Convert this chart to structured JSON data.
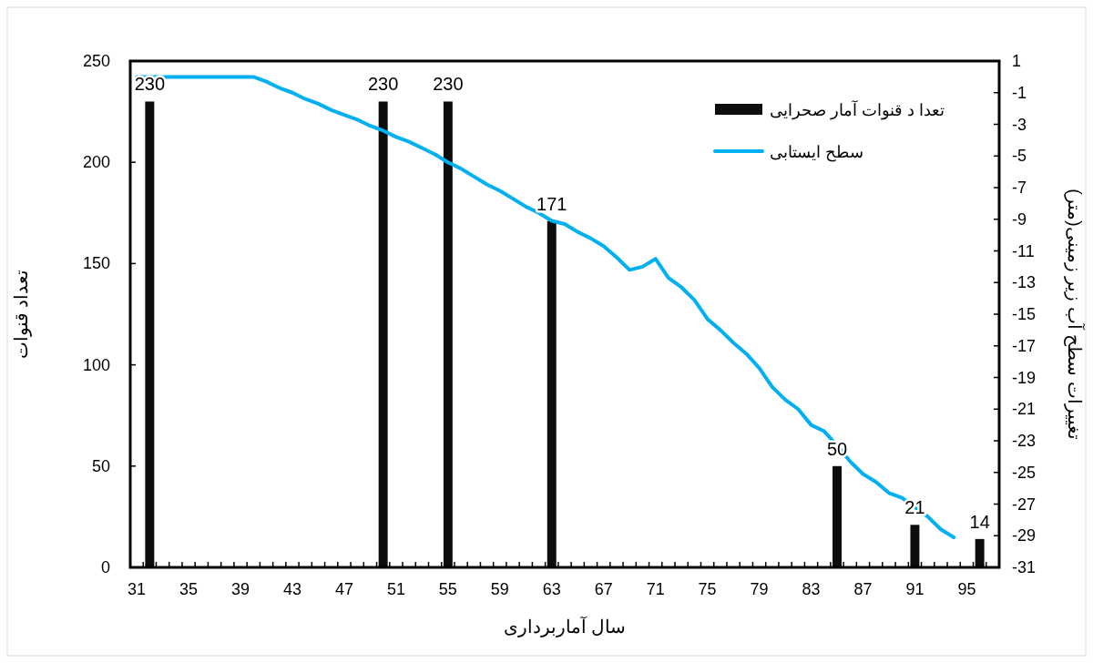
{
  "chart_data": {
    "type": "bar",
    "xlabel": "سال آماربرداری",
    "ylabel": "تعداد قنوات",
    "y2label": "تغییرات سطح آب زیر زمینی(متر)",
    "categories": [
      "31",
      null,
      null,
      null,
      "35",
      null,
      null,
      null,
      "39",
      null,
      null,
      null,
      "43",
      null,
      null,
      null,
      "47",
      null,
      null,
      null,
      "51",
      null,
      null,
      null,
      "55",
      null,
      null,
      null,
      "59",
      null,
      null,
      null,
      "63",
      null,
      null,
      null,
      "67",
      null,
      null,
      null,
      "71",
      null,
      null,
      null,
      "75",
      null,
      null,
      null,
      "79",
      null,
      null,
      null,
      "83",
      null,
      null,
      null,
      "87",
      null,
      null,
      null,
      "91",
      null,
      null,
      null,
      "95",
      null,
      null
    ],
    "series": [
      {
        "name": "تعدا د قنوات آمار صحرایی",
        "color": "#0d0d0d",
        "values": [
          null,
          230,
          null,
          null,
          null,
          null,
          null,
          null,
          null,
          null,
          null,
          null,
          null,
          null,
          null,
          null,
          null,
          null,
          null,
          230,
          null,
          null,
          null,
          null,
          230,
          null,
          null,
          null,
          null,
          null,
          null,
          null,
          171,
          null,
          null,
          null,
          null,
          null,
          null,
          null,
          null,
          null,
          null,
          null,
          null,
          null,
          null,
          null,
          null,
          null,
          null,
          null,
          null,
          null,
          50,
          null,
          null,
          null,
          null,
          null,
          21,
          null,
          null,
          null,
          null,
          14,
          null
        ],
        "value_labels": [
          null,
          "230",
          null,
          null,
          null,
          null,
          null,
          null,
          null,
          null,
          null,
          null,
          null,
          null,
          null,
          null,
          null,
          null,
          null,
          "230",
          null,
          null,
          null,
          null,
          "230",
          null,
          null,
          null,
          null,
          null,
          null,
          null,
          "171",
          null,
          null,
          null,
          null,
          null,
          null,
          null,
          null,
          null,
          null,
          null,
          null,
          null,
          null,
          null,
          null,
          null,
          null,
          null,
          null,
          null,
          "50",
          null,
          null,
          null,
          null,
          null,
          "21",
          null,
          null,
          null,
          null,
          "14",
          null
        ]
      },
      {
        "name": "سطح ایستابی",
        "type": "line",
        "axis": "y2",
        "color": "#00b0f0",
        "values": [
          0,
          0,
          0,
          0,
          0,
          0,
          0,
          0,
          0,
          0,
          -0.3,
          -0.7,
          -1.0,
          -1.4,
          -1.7,
          -2.1,
          -2.4,
          -2.7,
          -3.1,
          -3.4,
          -3.8,
          -4.1,
          -4.5,
          -4.9,
          -5.4,
          -5.8,
          -6.3,
          -6.8,
          -7.2,
          -7.7,
          -8.2,
          -8.6,
          -9.1,
          -9.3,
          -9.8,
          -10.2,
          -10.7,
          -11.4,
          -12.2,
          -12.0,
          -11.5,
          -12.7,
          -13.3,
          -14.1,
          -15.3,
          -16.0,
          -16.8,
          -17.5,
          -18.4,
          -19.6,
          -20.4,
          -21.0,
          -22.0,
          -22.4,
          -23.3,
          -24.3,
          -25.1,
          -25.6,
          -26.3,
          -26.6,
          -27.2,
          -27.8,
          -28.6,
          -29.1,
          null,
          null,
          null
        ]
      }
    ],
    "ylim": [
      0,
      250
    ],
    "yticks": [
      0,
      50,
      100,
      150,
      200,
      250
    ],
    "y2lim": [
      -31,
      1
    ],
    "y2ticks": [
      1,
      -1,
      -3,
      -5,
      -7,
      -9,
      -11,
      -13,
      -15,
      -17,
      -19,
      -21,
      -23,
      -25,
      -27,
      -29,
      -31
    ],
    "legend": "top right",
    "grid": false
  }
}
